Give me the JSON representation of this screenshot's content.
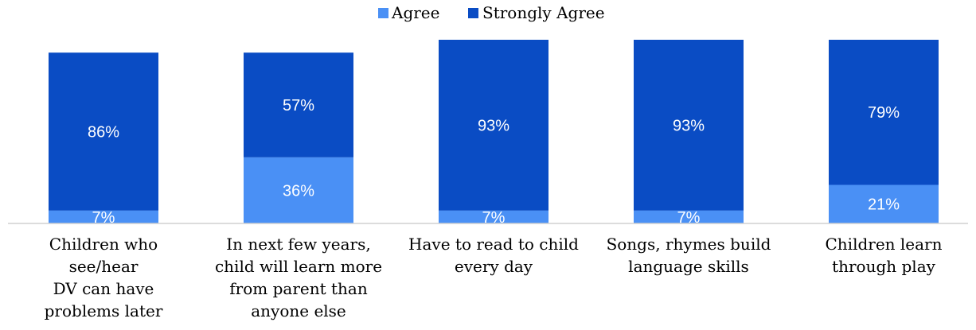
{
  "chart_data": {
    "type": "bar",
    "stacked": true,
    "categories": [
      [
        "Children who",
        "see/hear",
        "DV can have",
        "problems later"
      ],
      [
        "In next few years,",
        "child will learn more",
        "from parent than",
        "anyone else"
      ],
      [
        "Have to read to child",
        "every day"
      ],
      [
        "Songs, rhymes build",
        "language skills"
      ],
      [
        "Children learn",
        "through play"
      ]
    ],
    "series": [
      {
        "name": "Agree",
        "values": [
          7,
          36,
          7,
          7,
          21
        ],
        "labels": [
          "7%",
          "36%",
          "7%",
          "7%",
          "21%"
        ],
        "color": "#4a90f5"
      },
      {
        "name": "Strongly Agree",
        "values": [
          86,
          57,
          93,
          93,
          79
        ],
        "labels": [
          "86%",
          "57%",
          "93%",
          "93%",
          "79%"
        ],
        "color": "#0a4cc4"
      }
    ],
    "ylim": [
      0,
      100
    ],
    "grid": false,
    "legend_position": "top-center",
    "xlabel": "",
    "ylabel": ""
  }
}
